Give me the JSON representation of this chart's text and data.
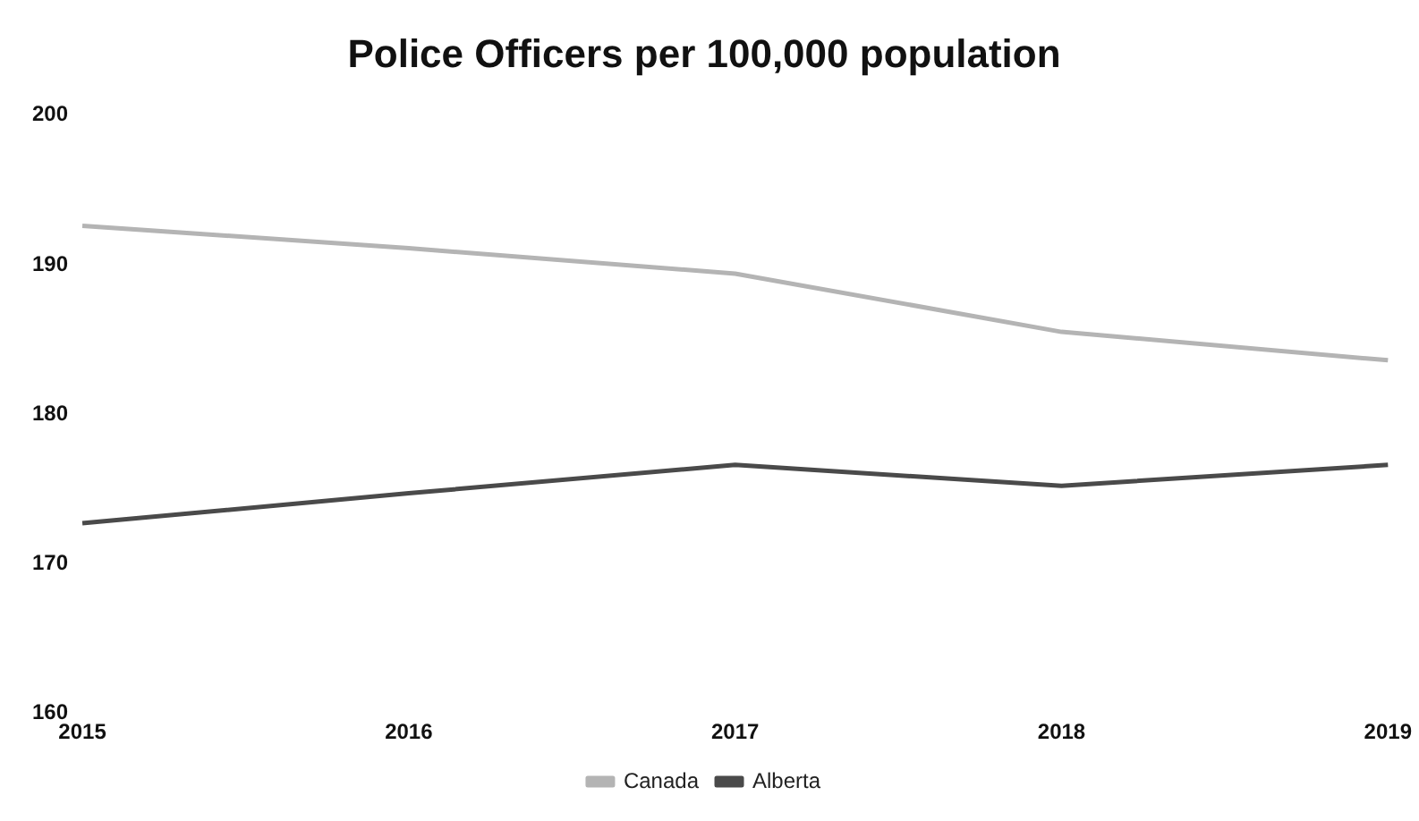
{
  "chart_data": {
    "type": "line",
    "title": "Police Officers per 100,000 population",
    "categories": [
      "2015",
      "2016",
      "2017",
      "2018",
      "2019"
    ],
    "series": [
      {
        "name": "Canada",
        "color": "#b4b4b4",
        "values": [
          192.6,
          191.1,
          189.4,
          185.5,
          183.6
        ]
      },
      {
        "name": "Alberta",
        "color": "#4a4a4a",
        "values": [
          172.7,
          174.7,
          176.6,
          175.2,
          176.6
        ]
      }
    ],
    "ylim": [
      160,
      200
    ],
    "yticks": [
      160,
      170,
      180,
      190,
      200
    ],
    "grid": false,
    "legend": "bottom",
    "marker": "none",
    "line_style": "solid"
  }
}
